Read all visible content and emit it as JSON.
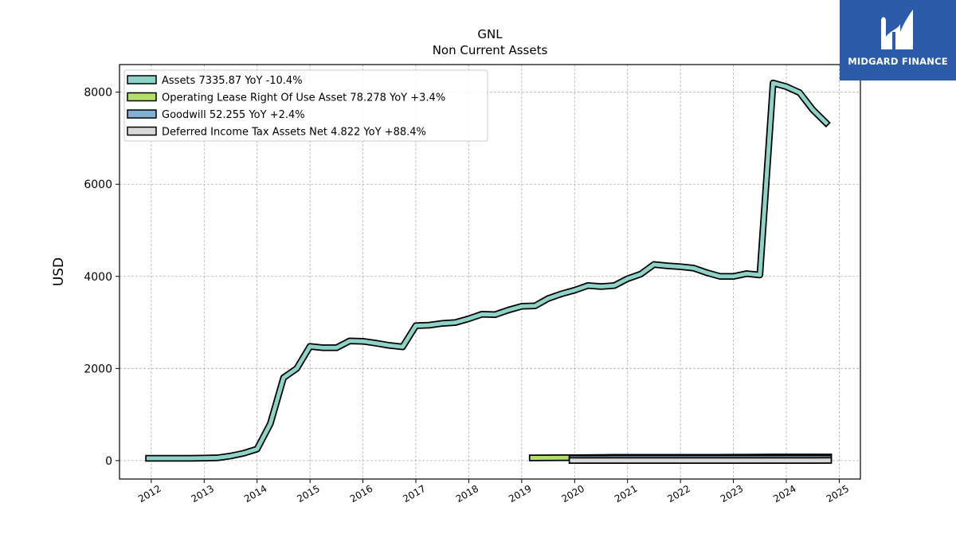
{
  "logo": {
    "text": "MIDGARD FINANCE"
  },
  "chart_data": {
    "type": "line",
    "title": "GNL",
    "subtitle": "Non Current  Assets",
    "ylabel": "USD",
    "xlabel": "",
    "xlim": [
      2011.4,
      2025.4
    ],
    "ylim": [
      -400,
      8600
    ],
    "x_ticks": [
      "2012",
      "2013",
      "2014",
      "2015",
      "2016",
      "2017",
      "2018",
      "2019",
      "2020",
      "2021",
      "2022",
      "2023",
      "2024",
      "2025"
    ],
    "y_ticks": [
      "0",
      "2000",
      "4000",
      "6000",
      "8000"
    ],
    "grid": true,
    "legend_position": "top-left",
    "series": [
      {
        "name": "Assets  7335.87 YoY -10.4%",
        "color": "#8dd3c7",
        "x": [
          2011.95,
          2012.25,
          2012.5,
          2012.75,
          2013.0,
          2013.25,
          2013.5,
          2013.75,
          2014.0,
          2014.25,
          2014.5,
          2014.75,
          2015.0,
          2015.25,
          2015.5,
          2015.75,
          2016.0,
          2016.25,
          2016.5,
          2016.75,
          2017.0,
          2017.25,
          2017.5,
          2017.75,
          2018.0,
          2018.25,
          2018.5,
          2018.75,
          2019.0,
          2019.25,
          2019.5,
          2019.75,
          2020.0,
          2020.25,
          2020.5,
          2020.75,
          2021.0,
          2021.25,
          2021.5,
          2021.75,
          2022.0,
          2022.25,
          2022.5,
          2022.75,
          2023.0,
          2023.25,
          2023.5,
          2023.75,
          2024.0,
          2024.25,
          2024.5,
          2024.75
        ],
        "y": [
          50,
          50,
          50,
          50,
          55,
          60,
          100,
          160,
          250,
          800,
          1800,
          2000,
          2480,
          2450,
          2450,
          2600,
          2590,
          2550,
          2500,
          2470,
          2930,
          2940,
          2980,
          3000,
          3080,
          3180,
          3170,
          3270,
          3350,
          3360,
          3520,
          3620,
          3700,
          3800,
          3780,
          3800,
          3950,
          4050,
          4260,
          4230,
          4210,
          4180,
          4080,
          4000,
          4000,
          4060,
          4030,
          8200,
          8120,
          7990,
          7620,
          7336
        ]
      },
      {
        "name": "Operating Lease Right Of Use Asset  78.278 YoY +3.4%",
        "color": "#b3de69",
        "x": [
          2019.2,
          2019.5,
          2019.75,
          2020.0,
          2020.25,
          2020.5,
          2020.75,
          2021.0,
          2021.25,
          2021.5,
          2021.75,
          2022.0,
          2022.25,
          2022.5,
          2022.75,
          2023.0,
          2023.25,
          2023.5,
          2023.75,
          2024.0,
          2024.25,
          2024.5,
          2024.8
        ],
        "y": [
          58,
          60,
          62,
          64,
          66,
          68,
          70,
          72,
          72,
          72,
          72,
          73,
          73,
          73,
          73,
          74,
          75,
          76,
          78,
          78,
          78,
          78,
          78
        ]
      },
      {
        "name": "Goodwill  52.255 YoY +2.4%",
        "color": "#80b1d3",
        "x": [
          2019.95,
          2020.25,
          2020.5,
          2020.75,
          2021.0,
          2021.25,
          2021.5,
          2021.75,
          2022.0,
          2022.25,
          2022.5,
          2022.75,
          2023.0,
          2023.25,
          2023.5,
          2023.75,
          2024.0,
          2024.25,
          2024.5,
          2024.8
        ],
        "y": [
          50,
          50,
          50,
          51,
          51,
          51,
          51,
          51,
          51,
          51,
          51,
          51,
          51,
          51,
          51,
          51,
          52,
          52,
          52,
          52
        ]
      },
      {
        "name": "Deferred Income Tax Assets Net  4.822 YoY +88.4%",
        "color": "#d9d9d9",
        "x": [
          2019.95,
          2020.25,
          2020.5,
          2020.75,
          2021.0,
          2021.25,
          2021.5,
          2021.75,
          2022.0,
          2022.25,
          2022.5,
          2022.75,
          2023.0,
          2023.25,
          2023.5,
          2023.75,
          2024.0,
          2024.25,
          2024.5,
          2024.8
        ],
        "y": [
          1,
          1,
          1,
          1,
          1,
          2,
          2,
          2,
          2,
          2,
          2,
          2,
          2,
          3,
          3,
          3,
          4,
          4,
          4,
          4.8
        ]
      }
    ]
  }
}
